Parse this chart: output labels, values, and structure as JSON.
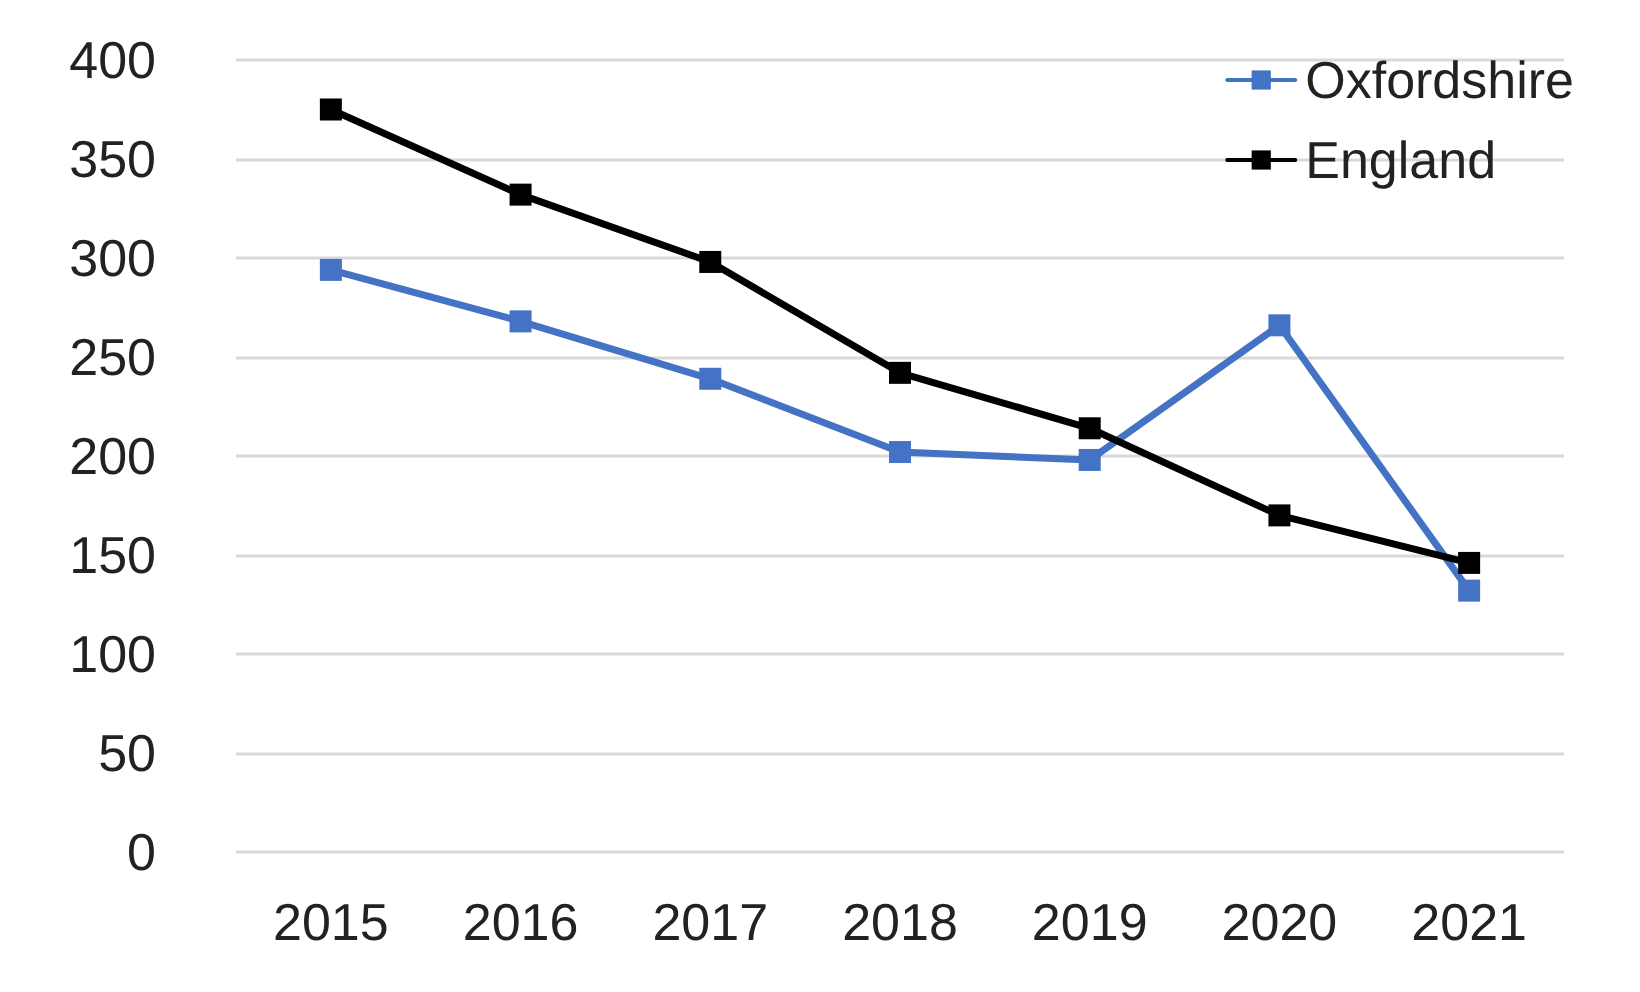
{
  "chart_data": {
    "type": "line",
    "categories": [
      "2015",
      "2016",
      "2017",
      "2018",
      "2019",
      "2020",
      "2021"
    ],
    "series": [
      {
        "name": "Oxfordshire",
        "color": "#4472c4",
        "values": [
          294,
          268,
          239,
          202,
          198,
          266,
          132
        ]
      },
      {
        "name": "England",
        "color": "#000000",
        "values": [
          375,
          332,
          298,
          242,
          214,
          170,
          146
        ]
      }
    ],
    "ylim": [
      0,
      400
    ],
    "yticks": [
      0,
      50,
      100,
      150,
      200,
      250,
      300,
      350,
      400
    ],
    "grid": "y",
    "legend": "top right",
    "marker": "square",
    "line_style": "solid"
  }
}
